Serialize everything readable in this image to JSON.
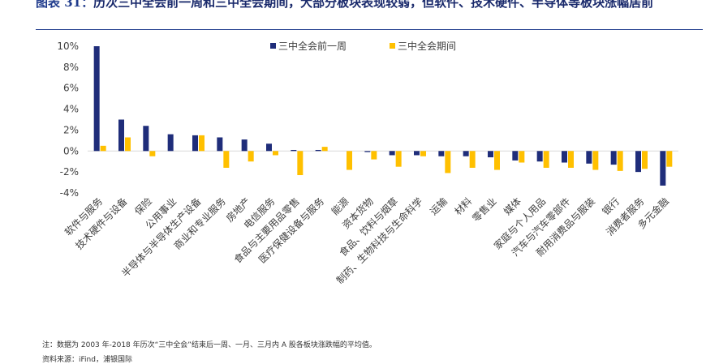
{
  "header": {
    "figure_label": "图表 31：",
    "title": "历次三中全会前一周和三中全会期间，大部分板块表现较弱，但软件、技术硬件、半导体等板块涨幅居前"
  },
  "footer": {
    "note": "注：数据为 2003 年-2018 年历次“三中全会”结束后一周、一月、三月内 A 股各板块涨跌幅的平均值。",
    "source": "资料来源：iFind，浦银国际"
  },
  "colors": {
    "series1": "#1f2d7a",
    "series2": "#ffc000",
    "axis": "#d9d9d9",
    "text": "#404040"
  },
  "chart_data": {
    "type": "bar",
    "title": "",
    "xlabel": "",
    "ylabel": "",
    "ylim": [
      -4,
      10
    ],
    "yticks": [
      "10%",
      "8%",
      "6%",
      "4%",
      "2%",
      "0%",
      "-2%",
      "-4%"
    ],
    "grid": false,
    "legend_position": "top-center",
    "categories": [
      "软件与服务",
      "技术硬件与设备",
      "保险",
      "公用事业",
      "半导体与半导体生产设备",
      "商业和专业服务",
      "房地产",
      "电信服务",
      "食品与主要用品零售",
      "医疗保健设备与服务",
      "能源",
      "资本货物",
      "食品、饮料与烟草",
      "制药、生物科技与生命科学",
      "运输",
      "材料",
      "零售业",
      "媒体",
      "家庭与个人用品",
      "汽车与汽车零部件",
      "耐用消费品与服装",
      "银行",
      "消费者服务",
      "多元金融"
    ],
    "series": [
      {
        "name": "三中全会前一周",
        "values": [
          10.0,
          3.0,
          2.4,
          1.6,
          1.5,
          1.3,
          1.1,
          0.7,
          0.1,
          0.1,
          0.0,
          -0.1,
          -0.4,
          -0.4,
          -0.5,
          -0.5,
          -0.6,
          -0.9,
          -1.0,
          -1.1,
          -1.2,
          -1.3,
          -2.0,
          -3.3
        ]
      },
      {
        "name": "三中全会期间",
        "values": [
          0.5,
          1.3,
          -0.5,
          0.0,
          1.5,
          -1.6,
          -1.0,
          -0.4,
          -2.3,
          0.4,
          -1.8,
          -0.8,
          -1.5,
          -0.5,
          -2.1,
          -1.6,
          -1.8,
          -1.1,
          -1.6,
          -1.6,
          -1.8,
          -1.9,
          -1.7,
          -1.5
        ]
      }
    ]
  }
}
